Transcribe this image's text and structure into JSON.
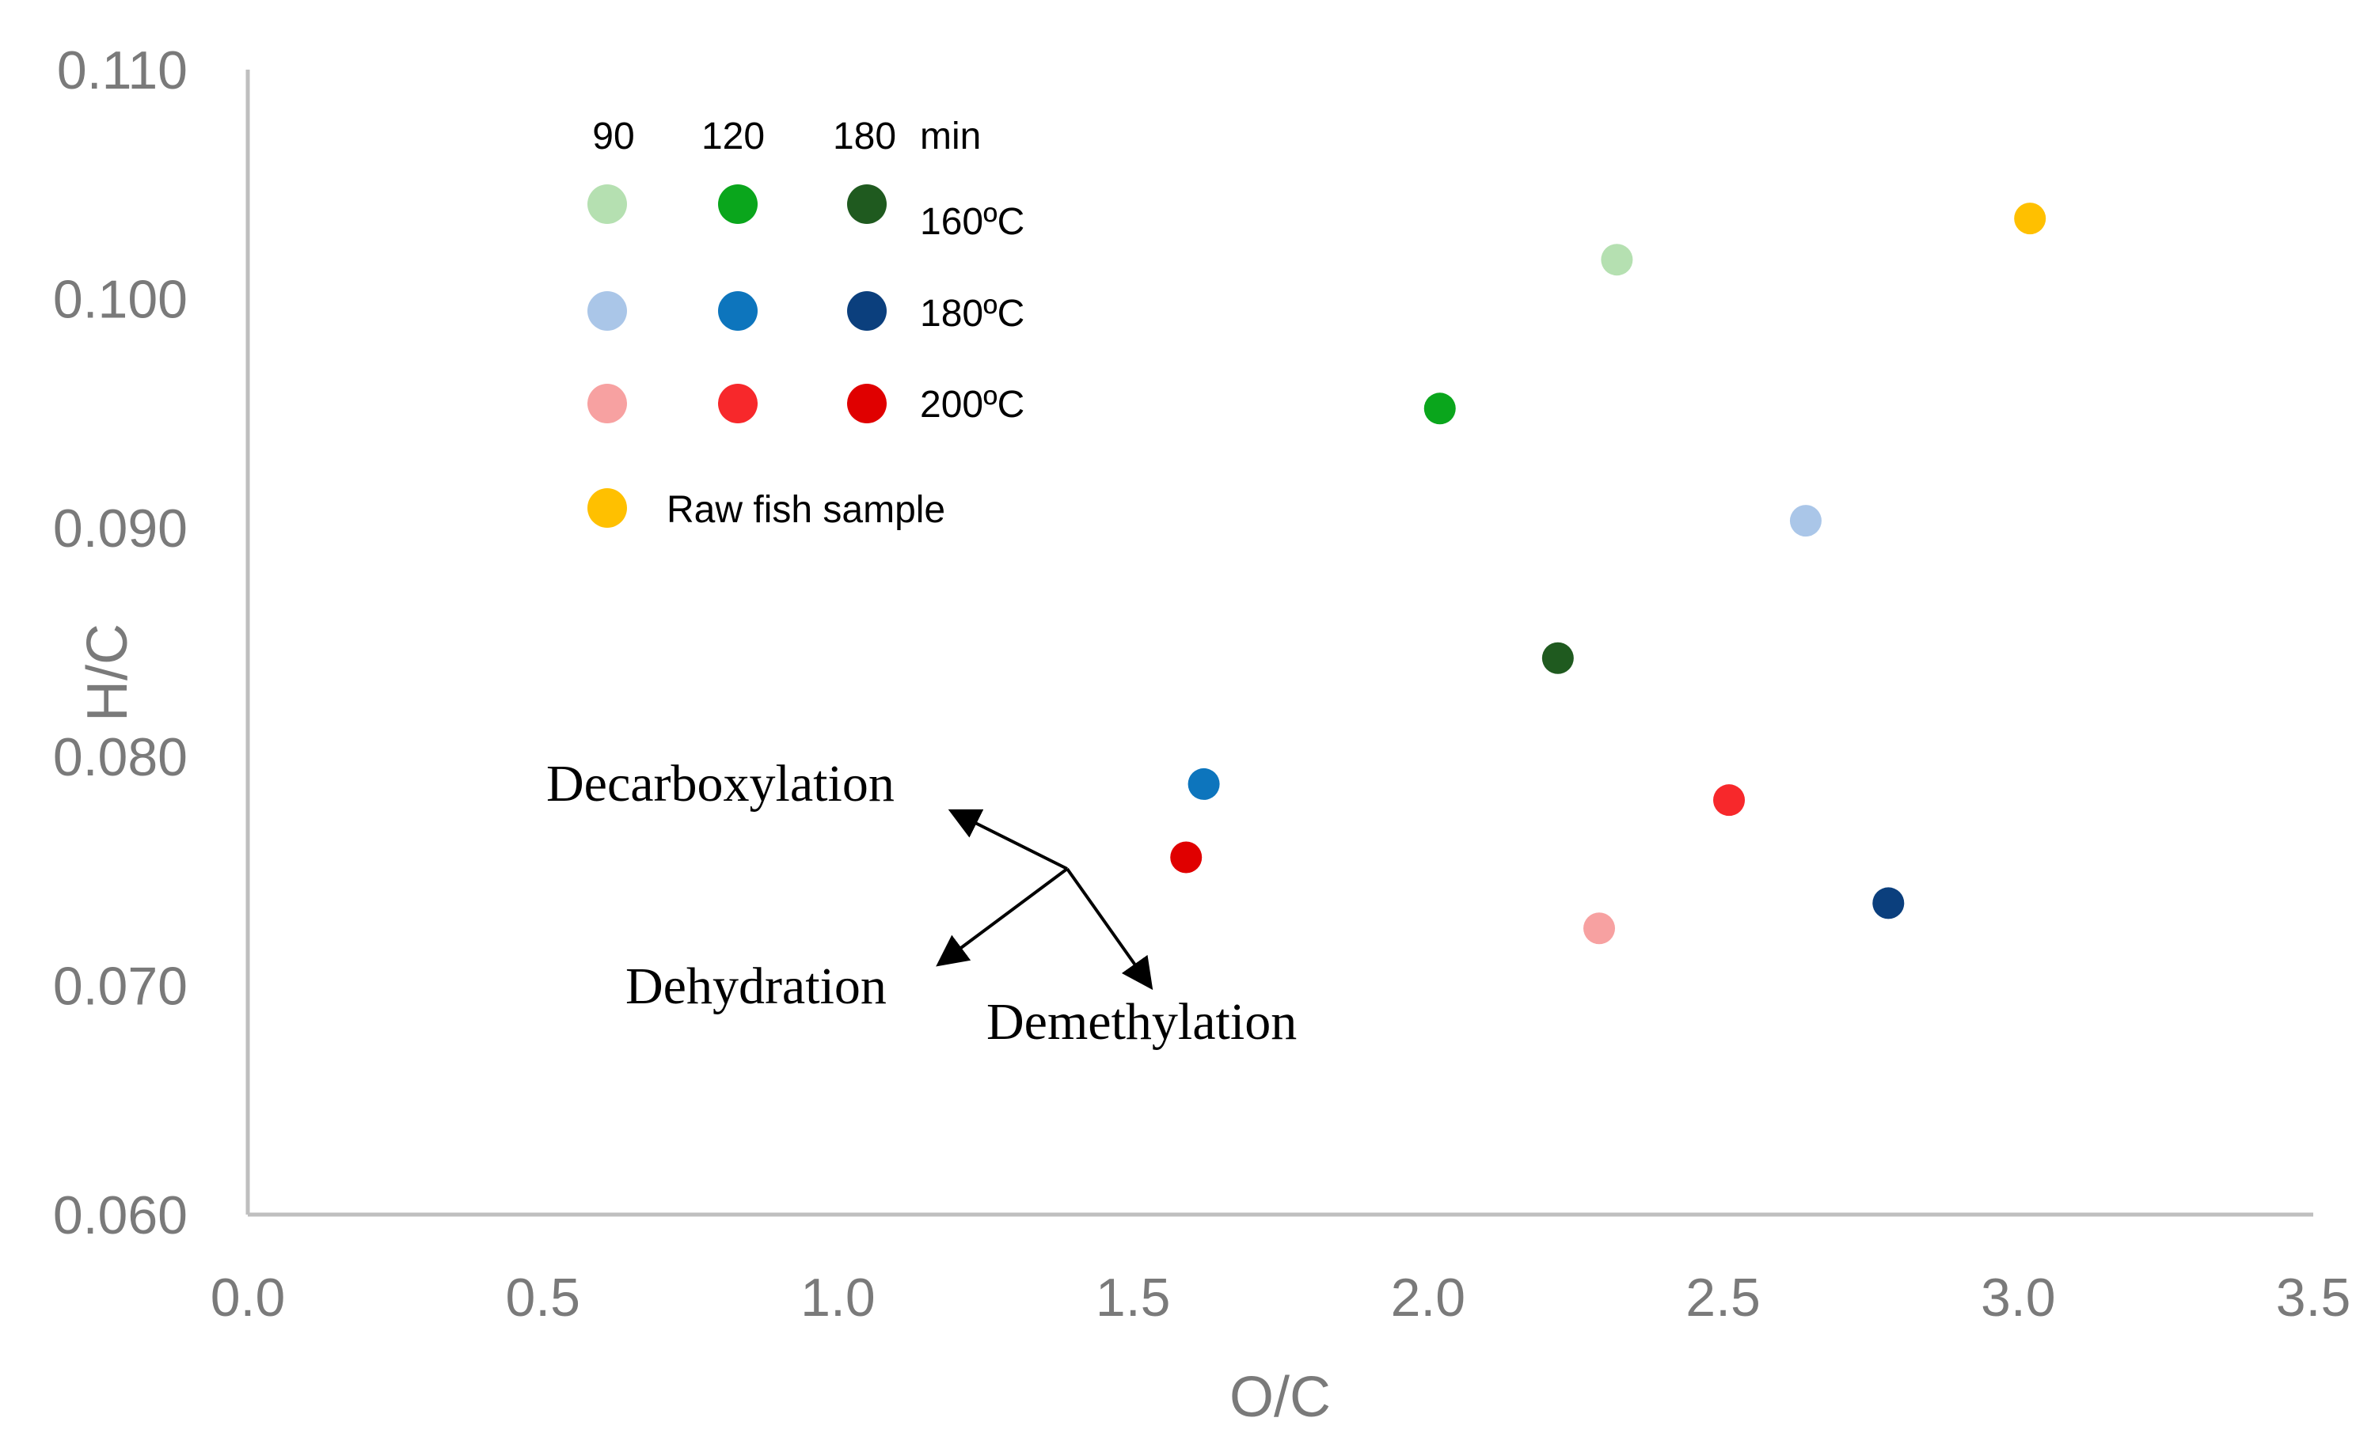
{
  "chart_data": {
    "type": "scatter",
    "title": "",
    "xlabel": "O/C",
    "ylabel": "H/C",
    "xlim": [
      0.0,
      3.5
    ],
    "ylim": [
      0.06,
      0.11
    ],
    "xticks": [
      "0.0",
      "0.5",
      "1.0",
      "1.5",
      "2.0",
      "2.5",
      "3.0",
      "3.5"
    ],
    "yticks": [
      "0.060",
      "0.070",
      "0.080",
      "0.090",
      "0.100",
      "0.110"
    ],
    "grid": false,
    "series": [
      {
        "name": "160°C, 90 min",
        "color": "#b5e0b1",
        "x": 2.32,
        "y": 0.1017
      },
      {
        "name": "160°C, 120 min",
        "color": "#0aa61c",
        "x": 2.02,
        "y": 0.0952
      },
      {
        "name": "160°C, 180 min",
        "color": "#1f5a1f",
        "x": 2.22,
        "y": 0.0843
      },
      {
        "name": "180°C, 90 min",
        "color": "#aac6e8",
        "x": 2.64,
        "y": 0.0903
      },
      {
        "name": "180°C, 120 min",
        "color": "#0d75bd",
        "x": 1.62,
        "y": 0.0788
      },
      {
        "name": "180°C, 180 min",
        "color": "#0b3f7d",
        "x": 2.78,
        "y": 0.0736
      },
      {
        "name": "200°C, 90 min",
        "color": "#f7a1a1",
        "x": 2.29,
        "y": 0.0725
      },
      {
        "name": "200°C, 120 min",
        "color": "#f7282b",
        "x": 2.51,
        "y": 0.0781
      },
      {
        "name": "200°C, 180 min",
        "color": "#e00000",
        "x": 1.59,
        "y": 0.0756
      },
      {
        "name": "Raw fish sample",
        "color": "#ffc000",
        "x": 3.02,
        "y": 0.1035
      }
    ],
    "legend": {
      "header": [
        "90",
        "120",
        "180",
        "min"
      ],
      "rows": [
        {
          "label": "160ºC",
          "colors": [
            "#b5e0b1",
            "#0aa61c",
            "#1f5a1f"
          ]
        },
        {
          "label": "180ºC",
          "colors": [
            "#aac6e8",
            "#0d75bd",
            "#0b3f7d"
          ]
        },
        {
          "label": "200ºC",
          "colors": [
            "#f7a1a1",
            "#f7282b",
            "#e00000"
          ]
        }
      ],
      "raw": {
        "label": "Raw fish sample",
        "color": "#ffc000"
      },
      "placement": "top-left"
    },
    "annotations": [
      "Decarboxylation",
      "Dehydration",
      "Demethylation"
    ]
  }
}
